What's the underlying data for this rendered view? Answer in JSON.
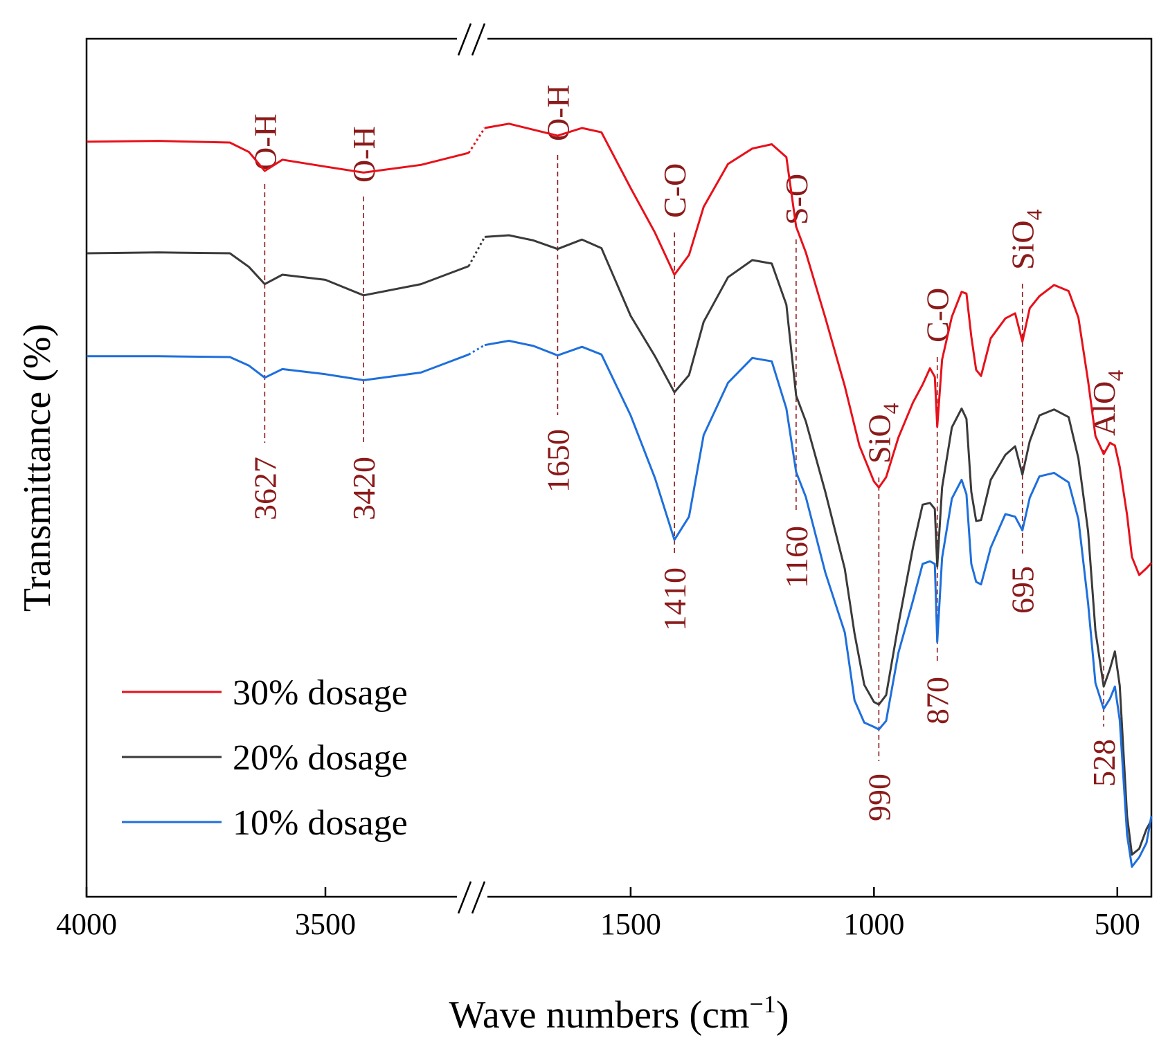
{
  "chart_data": {
    "type": "line",
    "title": "",
    "xlabel": "Wave numbers (cm⁻¹)",
    "xlabel_main": "Wave numbers (cm",
    "xlabel_sup": "−1",
    "xlabel_close": ")",
    "ylabel": "Transmittance (%)",
    "x_axis": {
      "broken": true,
      "left_segment": [
        4000,
        3200
      ],
      "right_segment": [
        1800,
        430
      ],
      "ticks": [
        "4000",
        "3500",
        "1500",
        "1000",
        "500"
      ],
      "tick_values": [
        4000,
        3500,
        1500,
        1000,
        500
      ],
      "reversed": true
    },
    "y_axis": {
      "ticks_shown": false,
      "unit": "%",
      "range": [
        0,
        100
      ]
    },
    "legend": {
      "placement": "bottom-left",
      "entries": [
        {
          "name": "30% dosage",
          "color": "#e8101a"
        },
        {
          "name": "20% dosage",
          "color": "#3a3a3a"
        },
        {
          "name": "10% dosage",
          "color": "#1e6fdc"
        }
      ]
    },
    "series": [
      {
        "name": "30% dosage",
        "color": "#e8101a",
        "points": [
          [
            4000,
            88
          ],
          [
            3850,
            88.1
          ],
          [
            3700,
            87.9
          ],
          [
            3660,
            86.8
          ],
          [
            3627,
            84.6
          ],
          [
            3590,
            85.9
          ],
          [
            3500,
            85.1
          ],
          [
            3420,
            84.4
          ],
          [
            3300,
            85.3
          ],
          [
            3200,
            86.7
          ],
          [
            1800,
            89.6
          ],
          [
            1750,
            90.1
          ],
          [
            1700,
            89.4
          ],
          [
            1650,
            88.7
          ],
          [
            1600,
            89.6
          ],
          [
            1560,
            89.1
          ],
          [
            1500,
            82.6
          ],
          [
            1450,
            77.4
          ],
          [
            1410,
            72.5
          ],
          [
            1380,
            74.8
          ],
          [
            1350,
            80.4
          ],
          [
            1300,
            85.4
          ],
          [
            1250,
            87.2
          ],
          [
            1210,
            87.7
          ],
          [
            1180,
            86.2
          ],
          [
            1160,
            78.1
          ],
          [
            1140,
            75.1
          ],
          [
            1100,
            67.5
          ],
          [
            1060,
            59.5
          ],
          [
            1030,
            52.6
          ],
          [
            1000,
            48.4
          ],
          [
            990,
            47.7
          ],
          [
            975,
            48.9
          ],
          [
            950,
            53.5
          ],
          [
            920,
            57.6
          ],
          [
            900,
            59.7
          ],
          [
            885,
            61.6
          ],
          [
            875,
            60.6
          ],
          [
            870,
            54.8
          ],
          [
            860,
            62.6
          ],
          [
            840,
            67.6
          ],
          [
            820,
            70.5
          ],
          [
            810,
            70.3
          ],
          [
            800,
            65.3
          ],
          [
            790,
            61.4
          ],
          [
            780,
            60.7
          ],
          [
            760,
            65.1
          ],
          [
            730,
            67.4
          ],
          [
            710,
            68.0
          ],
          [
            695,
            64.7
          ],
          [
            680,
            68.6
          ],
          [
            660,
            70.0
          ],
          [
            630,
            71.3
          ],
          [
            600,
            70.6
          ],
          [
            580,
            67.5
          ],
          [
            560,
            60.1
          ],
          [
            545,
            53.7
          ],
          [
            528,
            51.6
          ],
          [
            515,
            52.9
          ],
          [
            505,
            52.6
          ],
          [
            495,
            50.1
          ],
          [
            480,
            44.5
          ],
          [
            470,
            39.6
          ],
          [
            455,
            37.5
          ],
          [
            440,
            38.3
          ],
          [
            430,
            38.9
          ]
        ]
      },
      {
        "name": "20% dosage",
        "color": "#3a3a3a",
        "points": [
          [
            4000,
            75
          ],
          [
            3850,
            75.1
          ],
          [
            3700,
            75.0
          ],
          [
            3660,
            73.4
          ],
          [
            3627,
            71.4
          ],
          [
            3590,
            72.5
          ],
          [
            3500,
            71.9
          ],
          [
            3420,
            70.1
          ],
          [
            3300,
            71.4
          ],
          [
            3200,
            73.5
          ],
          [
            1800,
            76.9
          ],
          [
            1750,
            77.1
          ],
          [
            1700,
            76.5
          ],
          [
            1650,
            75.5
          ],
          [
            1600,
            76.6
          ],
          [
            1560,
            75.6
          ],
          [
            1500,
            67.7
          ],
          [
            1450,
            63.0
          ],
          [
            1410,
            58.8
          ],
          [
            1380,
            60.8
          ],
          [
            1350,
            67.0
          ],
          [
            1300,
            72.2
          ],
          [
            1250,
            74.2
          ],
          [
            1210,
            73.8
          ],
          [
            1180,
            69.0
          ],
          [
            1160,
            58.4
          ],
          [
            1140,
            55.4
          ],
          [
            1100,
            47.2
          ],
          [
            1060,
            38.2
          ],
          [
            1040,
            30.7
          ],
          [
            1020,
            24.7
          ],
          [
            1000,
            22.7
          ],
          [
            990,
            22.4
          ],
          [
            975,
            23.5
          ],
          [
            950,
            31.7
          ],
          [
            920,
            40.7
          ],
          [
            900,
            45.7
          ],
          [
            885,
            45.9
          ],
          [
            875,
            45.2
          ],
          [
            870,
            38.5
          ],
          [
            860,
            47.7
          ],
          [
            840,
            54.7
          ],
          [
            820,
            56.9
          ],
          [
            810,
            55.7
          ],
          [
            800,
            47.2
          ],
          [
            790,
            43.8
          ],
          [
            780,
            43.9
          ],
          [
            760,
            48.6
          ],
          [
            730,
            51.5
          ],
          [
            710,
            52.5
          ],
          [
            695,
            49.2
          ],
          [
            680,
            53.1
          ],
          [
            660,
            56.1
          ],
          [
            630,
            56.8
          ],
          [
            600,
            55.9
          ],
          [
            580,
            51.1
          ],
          [
            560,
            42.6
          ],
          [
            545,
            31.0
          ],
          [
            528,
            24.5
          ],
          [
            515,
            26.6
          ],
          [
            505,
            28.6
          ],
          [
            495,
            24.6
          ],
          [
            480,
            9.4
          ],
          [
            470,
            4.9
          ],
          [
            455,
            5.6
          ],
          [
            440,
            7.9
          ],
          [
            430,
            8.9
          ]
        ]
      },
      {
        "name": "10% dosage",
        "color": "#1e6fdc",
        "points": [
          [
            4000,
            63
          ],
          [
            3850,
            63.0
          ],
          [
            3700,
            62.9
          ],
          [
            3660,
            61.9
          ],
          [
            3627,
            60.5
          ],
          [
            3590,
            61.5
          ],
          [
            3500,
            60.9
          ],
          [
            3420,
            60.2
          ],
          [
            3300,
            61.1
          ],
          [
            3200,
            63.2
          ],
          [
            1800,
            64.3
          ],
          [
            1750,
            64.8
          ],
          [
            1700,
            64.2
          ],
          [
            1650,
            63.1
          ],
          [
            1600,
            64.1
          ],
          [
            1560,
            63.2
          ],
          [
            1500,
            56.1
          ],
          [
            1450,
            48.8
          ],
          [
            1410,
            41.6
          ],
          [
            1380,
            44.3
          ],
          [
            1350,
            53.8
          ],
          [
            1300,
            59.9
          ],
          [
            1250,
            62.8
          ],
          [
            1210,
            62.4
          ],
          [
            1180,
            56.9
          ],
          [
            1160,
            49.5
          ],
          [
            1140,
            46.6
          ],
          [
            1100,
            37.8
          ],
          [
            1060,
            30.8
          ],
          [
            1040,
            22.9
          ],
          [
            1020,
            20.3
          ],
          [
            1000,
            19.8
          ],
          [
            990,
            19.5
          ],
          [
            975,
            20.5
          ],
          [
            950,
            28.4
          ],
          [
            920,
            34.5
          ],
          [
            900,
            38.8
          ],
          [
            885,
            39.1
          ],
          [
            875,
            38.8
          ],
          [
            870,
            29.7
          ],
          [
            860,
            39.5
          ],
          [
            840,
            46.4
          ],
          [
            820,
            48.6
          ],
          [
            810,
            46.9
          ],
          [
            800,
            38.8
          ],
          [
            790,
            36.7
          ],
          [
            780,
            36.4
          ],
          [
            760,
            40.7
          ],
          [
            730,
            44.6
          ],
          [
            710,
            44.3
          ],
          [
            695,
            42.7
          ],
          [
            680,
            46.5
          ],
          [
            660,
            49.0
          ],
          [
            630,
            49.4
          ],
          [
            600,
            48.3
          ],
          [
            580,
            44.0
          ],
          [
            560,
            34.2
          ],
          [
            545,
            24.9
          ],
          [
            528,
            21.9
          ],
          [
            515,
            23.1
          ],
          [
            505,
            24.5
          ],
          [
            495,
            20.6
          ],
          [
            480,
            7.2
          ],
          [
            470,
            3.5
          ],
          [
            455,
            4.6
          ],
          [
            440,
            6.3
          ],
          [
            430,
            9.4
          ]
        ]
      }
    ],
    "annotations": [
      {
        "x": 3627,
        "group": "O-H",
        "label": "3627"
      },
      {
        "x": 3420,
        "group": "O-H",
        "label": "3420"
      },
      {
        "x": 1650,
        "group": "O-H",
        "label": "1650"
      },
      {
        "x": 1410,
        "group": "C-O",
        "label": "1410"
      },
      {
        "x": 1160,
        "group": "S-O",
        "label": "1160"
      },
      {
        "x": 990,
        "group": "SiO4",
        "label": "990"
      },
      {
        "x": 870,
        "group": "C-O",
        "label": "870"
      },
      {
        "x": 695,
        "group": "SiO4",
        "label": "695"
      },
      {
        "x": 528,
        "group": "AlO4",
        "label": "528"
      }
    ],
    "sub4": "4"
  }
}
